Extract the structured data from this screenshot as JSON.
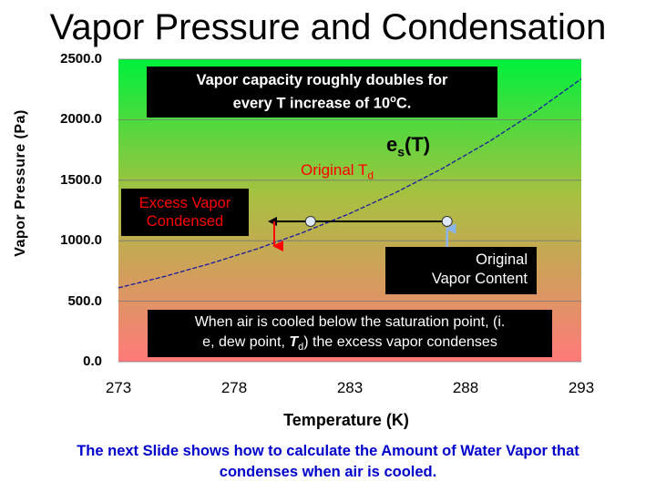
{
  "chart_data": {
    "type": "line",
    "title": "Vapor Pressure and Condensation",
    "xlabel": "Temperature (K)",
    "ylabel": "Vapor Pressure (Pa)",
    "xlim": [
      273,
      293
    ],
    "ylim": [
      0,
      2500
    ],
    "xticks": [
      "273",
      "278",
      "283",
      "288",
      "293"
    ],
    "yticks": [
      "0.0",
      "500.0",
      "1000.0",
      "1500.0",
      "2000.0",
      "2500.0"
    ],
    "grid": true,
    "series": [
      {
        "name": "es(T)",
        "x": [
          273,
          275,
          277,
          279,
          281,
          283,
          285,
          287,
          289,
          291,
          293
        ],
        "y": [
          611,
          705,
          813,
          933,
          1070,
          1225,
          1400,
          1597,
          1818,
          2064,
          2338
        ]
      }
    ],
    "points": [
      {
        "x": 281.3,
        "y": 1160
      },
      {
        "x": 287.2,
        "y": 1160
      }
    ],
    "annotations": {
      "capacity_line1": "Vapor capacity roughly doubles for",
      "capacity_line2": "every T increase of 10",
      "capacity_deg": "o",
      "capacity_unit": "C.",
      "es_main": "e",
      "es_sub": "s",
      "es_tail": "(T)",
      "td_main": "Original T",
      "td_sub": "d",
      "excess_line1": "Excess Vapor",
      "excess_line2": "Condensed",
      "orig_line1": "Original",
      "orig_line2": "Vapor Content",
      "note_line1": "When air is cooled below the saturation point, (i.",
      "note_line2_pre": "e, dew point, ",
      "note_T": "T",
      "note_d": "d",
      "note_line2_post": ") the excess vapor condenses"
    }
  },
  "footer": {
    "line1": "The next Slide shows how to calculate the Amount of Water Vapor that",
    "line2": "condenses when air is cooled."
  },
  "colors": {
    "top": "#00f03c",
    "bottom": "#ff7a7a",
    "curve": "#1a1aa0",
    "arrow_red": "#ff0000",
    "arrow_blue": "#8ab4e8",
    "point_fill": "#dde8f8"
  }
}
